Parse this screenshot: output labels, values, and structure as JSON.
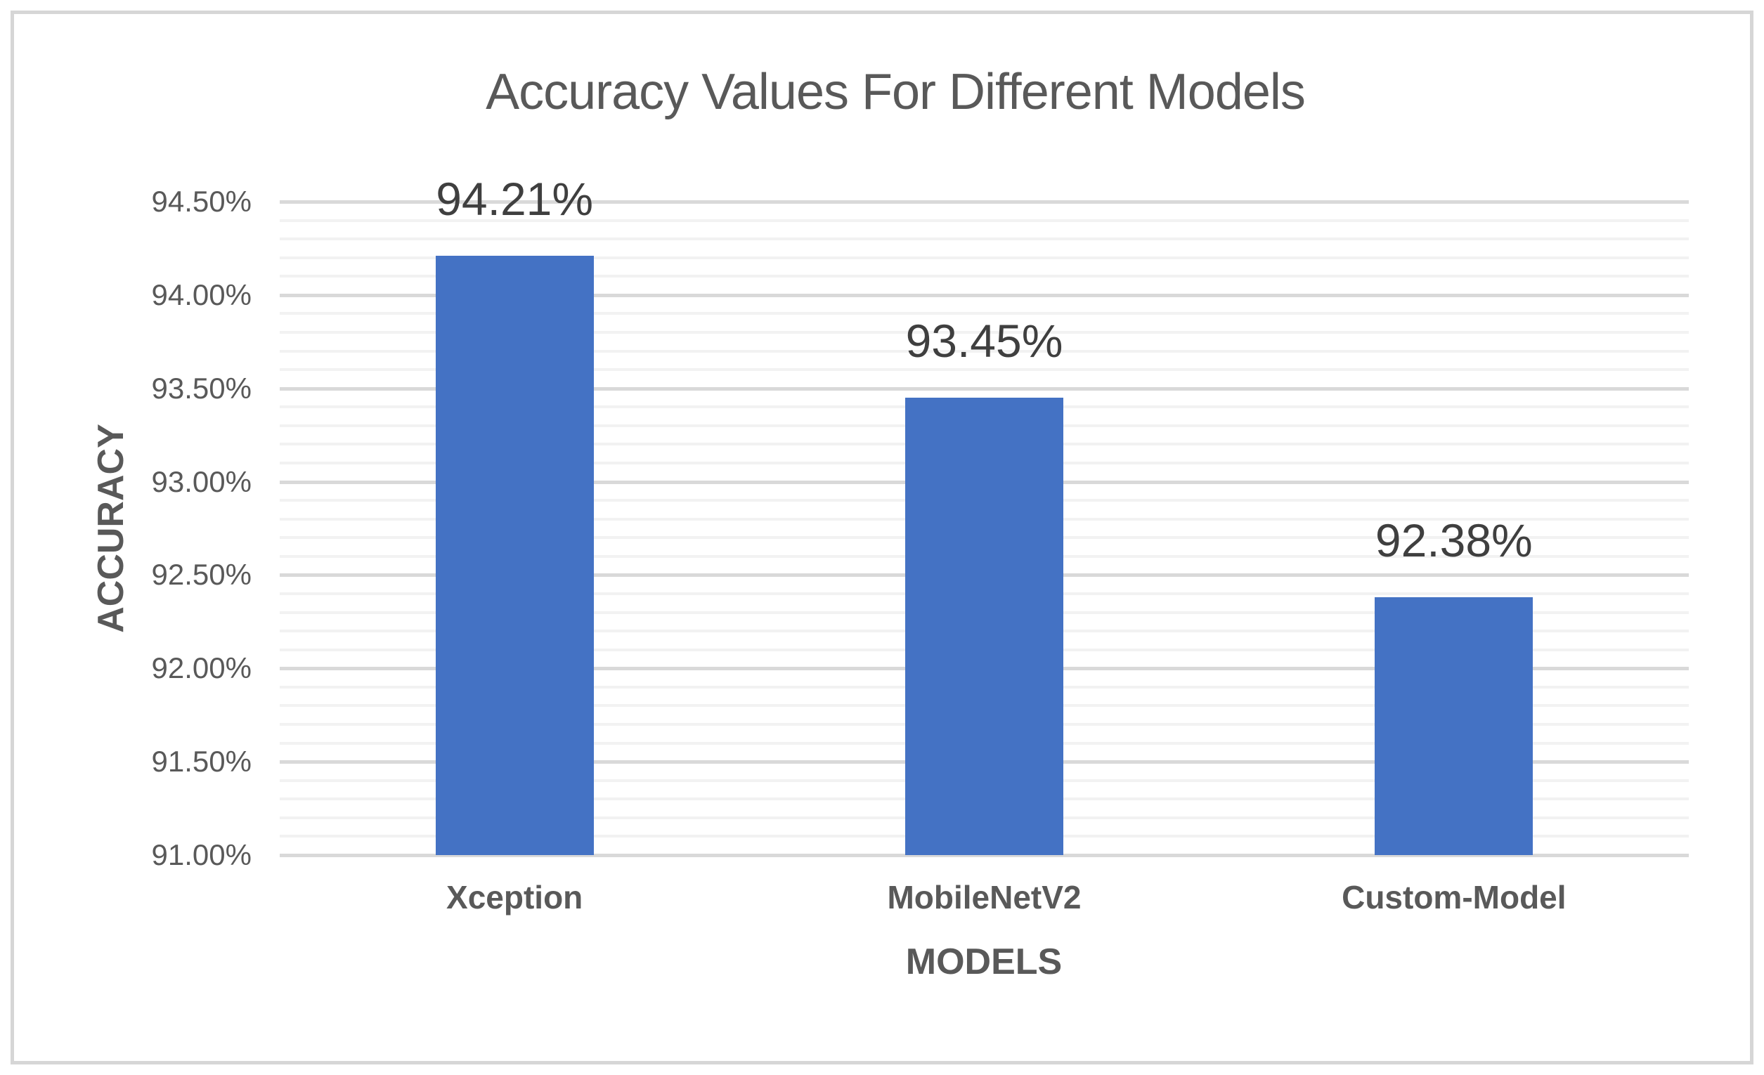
{
  "chart_data": {
    "type": "bar",
    "title": "Accuracy Values For Different Models",
    "categories": [
      "Xception",
      "MobileNetV2",
      "Custom-Model"
    ],
    "values": [
      94.21,
      93.45,
      92.38
    ],
    "data_labels": [
      "94.21%",
      "93.45%",
      "92.38%"
    ],
    "xlabel": "MODELS",
    "ylabel": "ACCURACY",
    "ylim": [
      91.0,
      94.5
    ],
    "y_major_unit": 0.5,
    "y_minor_unit": 0.1,
    "y_tick_labels": [
      "91.00%",
      "91.50%",
      "92.00%",
      "92.50%",
      "93.00%",
      "93.50%",
      "94.00%",
      "94.50%"
    ],
    "grid": "major-and-minor-horizontal",
    "legend_position": "none",
    "colors": {
      "bar": "#4472C4",
      "major_gridline": "#D9D9D9",
      "minor_gridline": "#F2F2F2",
      "axis_line": "#D9D9D9",
      "title_text": "#595959",
      "axis_text": "#595959",
      "data_label_text": "#3F3F3F",
      "frame_border": "#D6D6D6",
      "background": "#FFFFFF"
    }
  }
}
